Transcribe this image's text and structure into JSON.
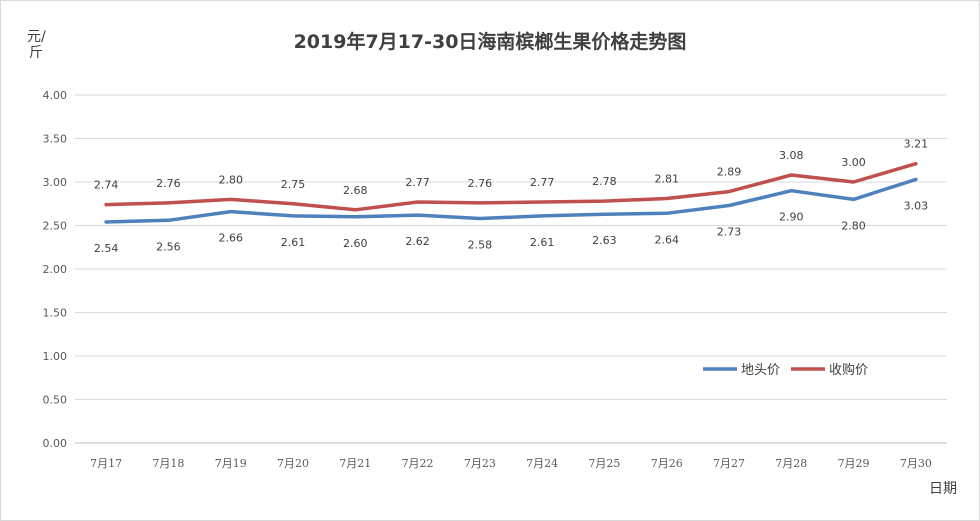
{
  "chart_data": {
    "type": "line",
    "title": "2019年7月17-30日海南槟榔生果价格走势图",
    "ylabel": "元/斤",
    "xlabel": "日期",
    "categories": [
      "7月17",
      "7月18",
      "7月19",
      "7月20",
      "7月21",
      "7月22",
      "7月23",
      "7月24",
      "7月25",
      "7月26",
      "7月27",
      "7月28",
      "7月29",
      "7月30"
    ],
    "ylim": [
      0,
      4
    ],
    "yticks": [
      "0.00",
      "0.50",
      "1.00",
      "1.50",
      "2.00",
      "2.50",
      "3.00",
      "3.50",
      "4.00"
    ],
    "grid": true,
    "legend_position": "right",
    "series": [
      {
        "name": "地头价",
        "color": "#4f81bd",
        "label_position": "below",
        "values": [
          2.54,
          2.56,
          2.66,
          2.61,
          2.6,
          2.62,
          2.58,
          2.61,
          2.63,
          2.64,
          2.73,
          2.9,
          2.8,
          3.03
        ],
        "labels": [
          "2.54",
          "2.56",
          "2.66",
          "2.61",
          "2.60",
          "2.62",
          "2.58",
          "2.61",
          "2.63",
          "2.64",
          "2.73",
          "2.90",
          "2.80",
          "3.03"
        ]
      },
      {
        "name": "收购价",
        "color": "#c0504d",
        "label_position": "above",
        "values": [
          2.74,
          2.76,
          2.8,
          2.75,
          2.68,
          2.77,
          2.76,
          2.77,
          2.78,
          2.81,
          2.89,
          3.08,
          3.0,
          3.21
        ],
        "labels": [
          "2.74",
          "2.76",
          "2.80",
          "2.75",
          "2.68",
          "2.77",
          "2.76",
          "2.77",
          "2.78",
          "2.81",
          "2.89",
          "3.08",
          "3.00",
          "3.21"
        ]
      }
    ]
  }
}
